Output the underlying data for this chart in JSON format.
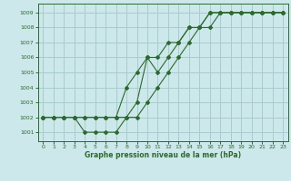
{
  "x": [
    0,
    1,
    2,
    3,
    4,
    5,
    6,
    7,
    8,
    9,
    10,
    11,
    12,
    13,
    14,
    15,
    16,
    17,
    18,
    19,
    20,
    21,
    22,
    23
  ],
  "line1": [
    1002,
    1002,
    1002,
    1002,
    1001,
    1001,
    1001,
    1001,
    1002,
    1003,
    1006,
    1005,
    1006,
    1007,
    1008,
    1008,
    1009,
    1009,
    1009,
    1009,
    1009,
    1009,
    1009,
    1009
  ],
  "line2": [
    1002,
    1002,
    1002,
    1002,
    1002,
    1002,
    1002,
    1002,
    1004,
    1005,
    1006,
    1006,
    1007,
    1007,
    1008,
    1008,
    1009,
    1009,
    1009,
    1009,
    1009,
    1009,
    1009,
    1009
  ],
  "line3": [
    1002,
    1002,
    1002,
    1002,
    1002,
    1002,
    1002,
    1002,
    1002,
    1002,
    1003,
    1004,
    1005,
    1006,
    1007,
    1008,
    1008,
    1009,
    1009,
    1009,
    1009,
    1009,
    1009,
    1009
  ],
  "line_color": "#2d6a2d",
  "bg_color": "#cce8ea",
  "grid_color": "#a8ccce",
  "xlabel": "Graphe pression niveau de la mer (hPa)",
  "ylim": [
    1000.4,
    1009.6
  ],
  "xlim": [
    -0.5,
    23.5
  ],
  "yticks": [
    1001,
    1002,
    1003,
    1004,
    1005,
    1006,
    1007,
    1008,
    1009
  ],
  "xticks": [
    0,
    1,
    2,
    3,
    4,
    5,
    6,
    7,
    8,
    9,
    10,
    11,
    12,
    13,
    14,
    15,
    16,
    17,
    18,
    19,
    20,
    21,
    22,
    23
  ]
}
